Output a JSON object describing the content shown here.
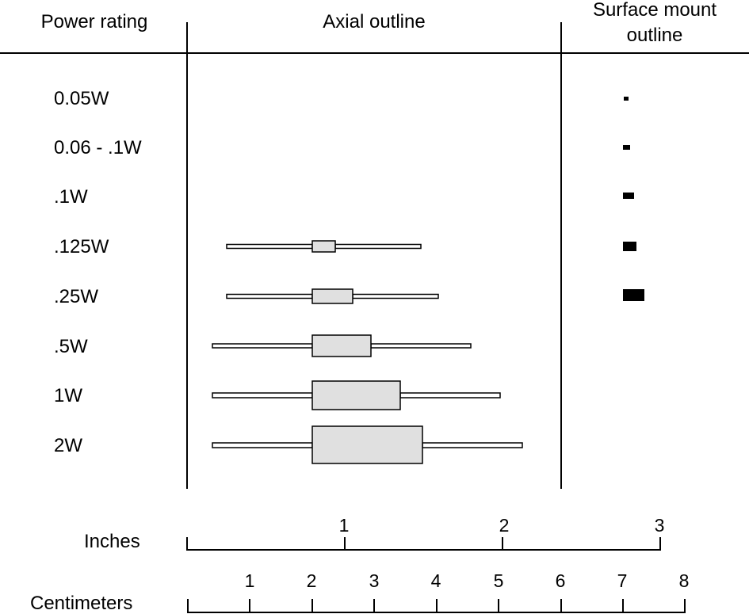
{
  "headers": {
    "power": "Power rating",
    "axial": "Axial outline",
    "smd_line1": "Surface mount",
    "smd_line2": "outline"
  },
  "rows": [
    {
      "rating": "0.05W",
      "has_axial": false,
      "smd_size": "tiny"
    },
    {
      "rating": "0.06 - .1W",
      "has_axial": false,
      "smd_size": "tiny"
    },
    {
      "rating": ".1W",
      "has_axial": false,
      "smd_size": "small"
    },
    {
      "rating": ".125W",
      "has_axial": true,
      "smd_size": "medium"
    },
    {
      "rating": ".25W",
      "has_axial": true,
      "smd_size": "large"
    },
    {
      "rating": ".5W",
      "has_axial": true,
      "smd_size": "none"
    },
    {
      "rating": "1W",
      "has_axial": true,
      "smd_size": "none"
    },
    {
      "rating": "2W",
      "has_axial": true,
      "smd_size": "none"
    }
  ],
  "scales": {
    "inches": {
      "label": "Inches",
      "ticks": [
        "1",
        "2",
        "3"
      ]
    },
    "centimeters": {
      "label": "Centimeters",
      "ticks": [
        "1",
        "2",
        "3",
        "4",
        "5",
        "6",
        "7",
        "8"
      ]
    }
  },
  "colors": {
    "body_fill": "#e0e0e0",
    "lead_fill": "#ffffff",
    "smd_fill": "#000000",
    "line": "#000000"
  }
}
